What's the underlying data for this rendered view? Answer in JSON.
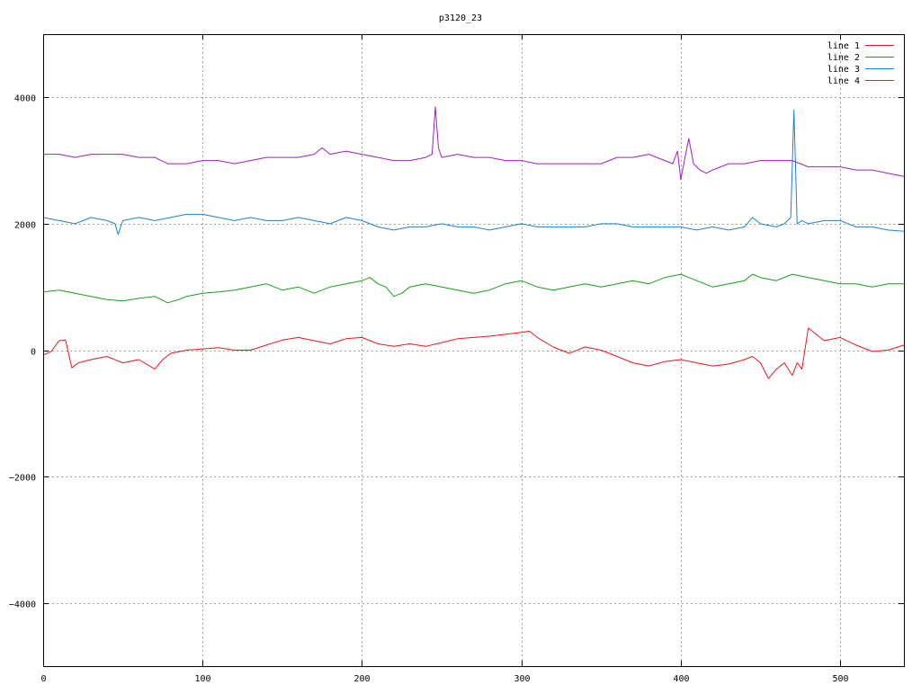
{
  "chart_data": {
    "type": "line",
    "title": "p3120_23",
    "xlabel": "",
    "ylabel": "",
    "xlim": [
      0,
      540
    ],
    "ylim": [
      -5000,
      5000
    ],
    "x_ticks": [
      0,
      100,
      200,
      300,
      400,
      500
    ],
    "y_ticks": [
      -4000,
      -2000,
      0,
      2000,
      4000
    ],
    "x_tick_labels": [
      "0",
      "100",
      "200",
      "300",
      "400",
      "500"
    ],
    "y_tick_labels": [
      "−4000",
      "−2000",
      "0",
      "2000",
      "4000"
    ],
    "grid": true,
    "legend_position": "top-right",
    "series": [
      {
        "name": "line 1",
        "color": "#e41a1c",
        "x": [
          0,
          5,
          10,
          14,
          18,
          22,
          30,
          40,
          50,
          60,
          70,
          75,
          80,
          90,
          100,
          110,
          120,
          130,
          140,
          150,
          160,
          170,
          180,
          190,
          200,
          210,
          220,
          230,
          240,
          250,
          260,
          270,
          280,
          290,
          300,
          305,
          310,
          320,
          330,
          340,
          350,
          360,
          370,
          380,
          390,
          400,
          410,
          420,
          430,
          440,
          445,
          450,
          455,
          460,
          465,
          470,
          473,
          476,
          480,
          485,
          490,
          500,
          510,
          520,
          530,
          540
        ],
        "values": [
          -80,
          -20,
          150,
          160,
          -280,
          -200,
          -150,
          -100,
          -200,
          -150,
          -300,
          -150,
          -50,
          0,
          20,
          40,
          0,
          0,
          80,
          160,
          200,
          150,
          100,
          180,
          200,
          100,
          60,
          100,
          60,
          120,
          180,
          200,
          220,
          250,
          280,
          300,
          200,
          50,
          -50,
          50,
          0,
          -100,
          -200,
          -250,
          -180,
          -150,
          -200,
          -250,
          -220,
          -150,
          -100,
          -200,
          -450,
          -300,
          -200,
          -400,
          -200,
          -300,
          350,
          250,
          150,
          200,
          80,
          -20,
          0,
          80
        ]
      },
      {
        "name": "line 2",
        "color": "#1a9e1a",
        "x": [
          0,
          10,
          20,
          30,
          40,
          50,
          60,
          70,
          78,
          85,
          90,
          100,
          110,
          120,
          130,
          140,
          150,
          160,
          170,
          180,
          190,
          200,
          205,
          210,
          215,
          220,
          225,
          230,
          240,
          250,
          260,
          270,
          280,
          290,
          300,
          310,
          320,
          330,
          340,
          350,
          360,
          370,
          380,
          390,
          400,
          410,
          420,
          430,
          440,
          445,
          450,
          460,
          470,
          480,
          490,
          500,
          510,
          520,
          530,
          540
        ],
        "values": [
          920,
          950,
          900,
          850,
          800,
          780,
          820,
          850,
          750,
          800,
          850,
          900,
          920,
          950,
          1000,
          1050,
          950,
          1000,
          900,
          1000,
          1050,
          1100,
          1150,
          1050,
          1000,
          850,
          900,
          1000,
          1050,
          1000,
          950,
          900,
          950,
          1050,
          1100,
          1000,
          950,
          1000,
          1050,
          1000,
          1050,
          1100,
          1050,
          1150,
          1200,
          1100,
          1000,
          1050,
          1100,
          1200,
          1150,
          1100,
          1200,
          1150,
          1100,
          1050,
          1050,
          1000,
          1050,
          1050
        ]
      },
      {
        "name": "line 3",
        "color": "#1f7fd1",
        "x": [
          0,
          10,
          20,
          30,
          40,
          45,
          47,
          50,
          60,
          70,
          80,
          90,
          100,
          110,
          120,
          130,
          140,
          150,
          160,
          170,
          180,
          190,
          200,
          210,
          220,
          230,
          240,
          250,
          260,
          270,
          280,
          290,
          300,
          310,
          320,
          330,
          340,
          350,
          360,
          370,
          380,
          390,
          400,
          410,
          420,
          430,
          440,
          445,
          450,
          460,
          465,
          469,
          471,
          473,
          476,
          480,
          490,
          500,
          510,
          520,
          530,
          540
        ],
        "values": [
          2100,
          2050,
          2000,
          2100,
          2050,
          2000,
          1830,
          2050,
          2100,
          2050,
          2100,
          2150,
          2150,
          2100,
          2050,
          2100,
          2050,
          2050,
          2100,
          2050,
          2000,
          2100,
          2050,
          1950,
          1900,
          1950,
          1950,
          2000,
          1950,
          1950,
          1900,
          1950,
          2000,
          1950,
          1950,
          1950,
          1950,
          2000,
          2000,
          1950,
          1950,
          1950,
          1950,
          1900,
          1950,
          1900,
          1950,
          2100,
          2000,
          1950,
          2000,
          2100,
          3800,
          2000,
          2050,
          2000,
          2050,
          2050,
          1950,
          1950,
          1900,
          1880
        ]
      },
      {
        "name": "line 4",
        "color": "#a020c0",
        "x": [
          0,
          10,
          20,
          30,
          40,
          50,
          60,
          70,
          78,
          85,
          90,
          100,
          110,
          120,
          130,
          140,
          150,
          160,
          170,
          175,
          180,
          190,
          200,
          210,
          220,
          230,
          240,
          244,
          246,
          248,
          250,
          260,
          270,
          280,
          290,
          300,
          310,
          320,
          330,
          340,
          350,
          360,
          370,
          380,
          385,
          390,
          395,
          398,
          400,
          405,
          408,
          412,
          416,
          420,
          430,
          440,
          450,
          460,
          470,
          480,
          490,
          500,
          510,
          520,
          530,
          540
        ],
        "values": [
          3100,
          3100,
          3050,
          3100,
          3100,
          3100,
          3050,
          3050,
          2950,
          2950,
          2950,
          3000,
          3000,
          2950,
          3000,
          3050,
          3050,
          3050,
          3100,
          3200,
          3100,
          3150,
          3100,
          3050,
          3000,
          3000,
          3050,
          3100,
          3850,
          3200,
          3050,
          3100,
          3050,
          3050,
          3000,
          3000,
          2950,
          2950,
          2950,
          2950,
          2950,
          3050,
          3050,
          3100,
          3050,
          3000,
          2950,
          3150,
          2700,
          3350,
          2950,
          2850,
          2800,
          2850,
          2950,
          2950,
          3000,
          3000,
          3000,
          2900,
          2900,
          2900,
          2850,
          2850,
          2800,
          2750
        ]
      }
    ]
  }
}
